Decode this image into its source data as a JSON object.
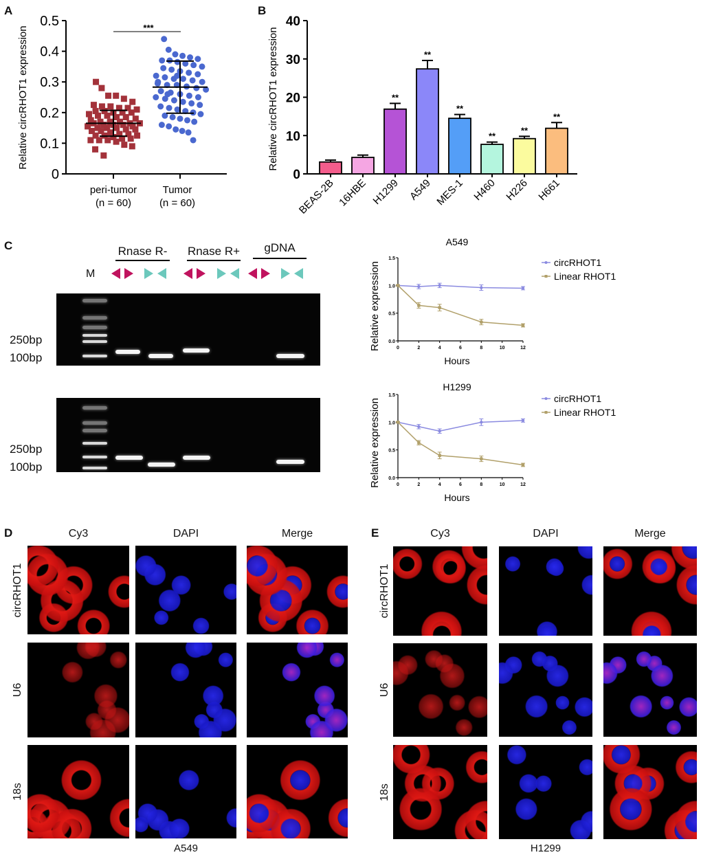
{
  "panels": {
    "A": "A",
    "B": "B",
    "C": "C",
    "D": "D",
    "E": "E"
  },
  "chart_data": [
    {
      "id": "A",
      "type": "scatter",
      "ylabel": "Relative circRHOT1 expression",
      "ylim": [
        0,
        0.5
      ],
      "yticks": [
        "0",
        "0.1",
        "0.2",
        "0.3",
        "0.4",
        "0.5"
      ],
      "categories": [
        "peri-tumor",
        "Tumor"
      ],
      "category_n": [
        "(n = 60)",
        "(n = 60)"
      ],
      "significance": "***",
      "colors": [
        "#a3323a",
        "#4a68cf"
      ],
      "series": [
        {
          "name": "peri-tumor",
          "mean": 0.165,
          "sd": 0.042,
          "values": [
            0.3,
            0.28,
            0.255,
            0.255,
            0.245,
            0.235,
            0.225,
            0.22,
            0.22,
            0.215,
            0.215,
            0.21,
            0.205,
            0.205,
            0.2,
            0.2,
            0.2,
            0.195,
            0.19,
            0.19,
            0.185,
            0.185,
            0.18,
            0.175,
            0.17,
            0.17,
            0.17,
            0.165,
            0.165,
            0.165,
            0.16,
            0.16,
            0.16,
            0.155,
            0.155,
            0.15,
            0.15,
            0.15,
            0.145,
            0.145,
            0.14,
            0.14,
            0.135,
            0.13,
            0.13,
            0.125,
            0.125,
            0.125,
            0.12,
            0.115,
            0.115,
            0.11,
            0.11,
            0.11,
            0.105,
            0.095,
            0.09,
            0.08,
            0.06,
            0.165
          ]
        },
        {
          "name": "Tumor",
          "mean": 0.283,
          "sd": 0.085,
          "values": [
            0.44,
            0.405,
            0.39,
            0.385,
            0.38,
            0.375,
            0.37,
            0.37,
            0.365,
            0.36,
            0.355,
            0.35,
            0.345,
            0.34,
            0.335,
            0.33,
            0.325,
            0.32,
            0.315,
            0.31,
            0.31,
            0.305,
            0.3,
            0.295,
            0.29,
            0.29,
            0.285,
            0.28,
            0.275,
            0.27,
            0.265,
            0.26,
            0.255,
            0.25,
            0.25,
            0.245,
            0.24,
            0.235,
            0.23,
            0.225,
            0.22,
            0.215,
            0.21,
            0.205,
            0.2,
            0.195,
            0.19,
            0.185,
            0.18,
            0.175,
            0.17,
            0.16,
            0.155,
            0.145,
            0.14,
            0.135,
            0.11,
            0.3,
            0.26,
            0.32
          ]
        }
      ]
    },
    {
      "id": "B",
      "type": "bar",
      "ylabel": "Relative circRHOT1 expression",
      "ylim": [
        0,
        40
      ],
      "yticks": [
        "0",
        "10",
        "20",
        "30",
        "40"
      ],
      "categories": [
        "BEAS-2B",
        "16HBE",
        "H1299",
        "A549",
        "MES-1",
        "H460",
        "H226",
        "H661"
      ],
      "values": [
        3.1,
        4.3,
        16.9,
        27.4,
        14.5,
        7.7,
        9.2,
        11.9
      ],
      "errors": [
        0.5,
        0.6,
        1.5,
        2.2,
        1.0,
        0.6,
        0.6,
        1.5
      ],
      "significance": [
        "",
        "",
        "**",
        "**",
        "**",
        "**",
        "**",
        "**"
      ],
      "colors": [
        "#f45d8c",
        "#f5a6e3",
        "#b553d6",
        "#8b87f9",
        "#549ef7",
        "#b4f5de",
        "#fbfb9e",
        "#fbbd7e"
      ]
    },
    {
      "id": "C-A549",
      "type": "line",
      "title": "A549",
      "xlabel": "Hours",
      "ylabel": "Relative expression",
      "x": [
        0,
        2,
        4,
        8,
        12
      ],
      "xticks": [
        "0",
        "2",
        "4",
        "6",
        "8",
        "10",
        "12"
      ],
      "yticks": [
        "0.0",
        "0.5",
        "1.0",
        "1.5"
      ],
      "xlim": [
        0,
        12
      ],
      "ylim": [
        0,
        1.5
      ],
      "legend": "right",
      "series": [
        {
          "name": "circRHOT1",
          "color": "#8a8ae0",
          "values": [
            1.0,
            0.98,
            1.0,
            0.96,
            0.95
          ],
          "errors": [
            0.01,
            0.04,
            0.04,
            0.05,
            0.03
          ]
        },
        {
          "name": "Linear RHOT1",
          "color": "#b1a06a",
          "values": [
            1.0,
            0.64,
            0.6,
            0.34,
            0.28
          ],
          "errors": [
            0.01,
            0.05,
            0.06,
            0.05,
            0.03
          ]
        }
      ]
    },
    {
      "id": "C-H1299",
      "type": "line",
      "title": "H1299",
      "xlabel": "Hours",
      "ylabel": "Relative expression",
      "x": [
        0,
        2,
        4,
        8,
        12
      ],
      "xticks": [
        "0",
        "2",
        "4",
        "6",
        "8",
        "10",
        "12"
      ],
      "yticks": [
        "0.0",
        "0.5",
        "1.0",
        "1.5"
      ],
      "xlim": [
        0,
        12
      ],
      "ylim": [
        0,
        1.5
      ],
      "legend": "right",
      "series": [
        {
          "name": "circRHOT1",
          "color": "#8a8ae0",
          "values": [
            1.0,
            0.92,
            0.84,
            1.0,
            1.03
          ],
          "errors": [
            0.01,
            0.04,
            0.04,
            0.06,
            0.03
          ]
        },
        {
          "name": "Linear RHOT1",
          "color": "#b1a06a",
          "values": [
            1.0,
            0.63,
            0.4,
            0.34,
            0.23
          ],
          "errors": [
            0.01,
            0.04,
            0.06,
            0.05,
            0.03
          ]
        }
      ]
    }
  ],
  "gel": {
    "marker": "M",
    "groups": [
      "Rnase R-",
      "Rnase R+",
      "gDNA"
    ],
    "size_labels": [
      "250bp",
      "100bp"
    ],
    "primer_colors": [
      "#c0135e",
      "#6cc8bc"
    ]
  },
  "microscopy": {
    "columns": [
      "Cy3",
      "DAPI",
      "Merge"
    ],
    "rows": [
      "circRHOT1",
      "U6",
      "18s"
    ],
    "cell_lines": [
      "A549",
      "H1299"
    ]
  }
}
